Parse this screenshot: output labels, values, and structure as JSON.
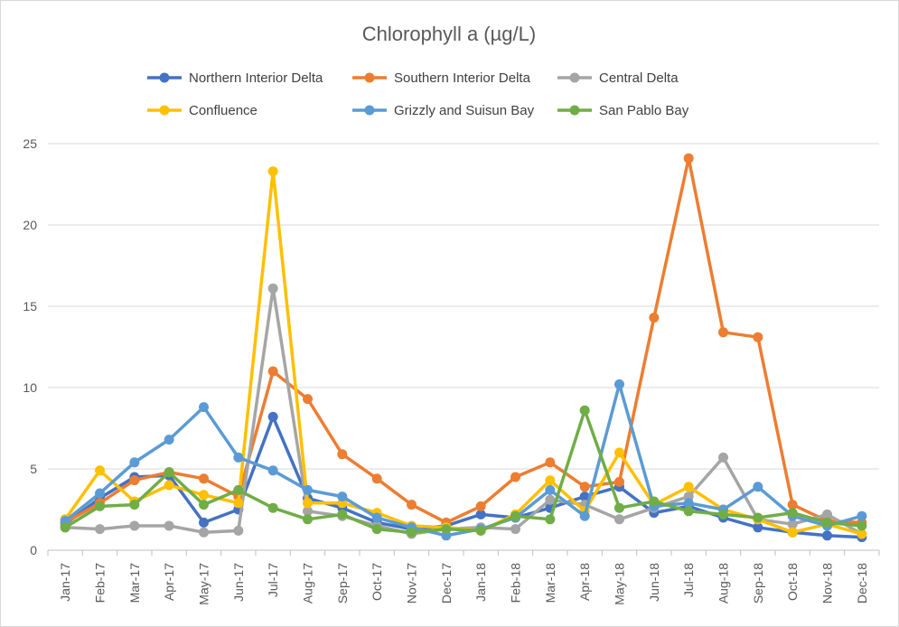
{
  "chart_data": {
    "type": "line",
    "title": "Chlorophyll a (µg/L)",
    "xlabel": "",
    "ylabel": "",
    "ylim": [
      0,
      25
    ],
    "yticks": [
      0,
      5,
      10,
      15,
      20,
      25
    ],
    "grid": true,
    "legend_position": "top",
    "categories": [
      "Jan-17",
      "Feb-17",
      "Mar-17",
      "Apr-17",
      "May-17",
      "Jun-17",
      "Jul-17",
      "Aug-17",
      "Sep-17",
      "Oct-17",
      "Nov-17",
      "Dec-17",
      "Jan-18",
      "Feb-18",
      "Mar-18",
      "Apr-18",
      "May-18",
      "Jun-18",
      "Jul-18",
      "Aug-18",
      "Sep-18",
      "Oct-18",
      "Nov-18",
      "Dec-18"
    ],
    "series": [
      {
        "name": "Northern Interior Delta",
        "color": "#4472C4",
        "values": [
          1.6,
          3.2,
          4.5,
          4.6,
          1.7,
          2.5,
          8.2,
          3.2,
          2.6,
          1.7,
          1.3,
          1.5,
          2.2,
          2.0,
          2.6,
          3.3,
          3.9,
          2.3,
          2.7,
          2.0,
          1.4,
          1.1,
          0.9,
          0.8
        ]
      },
      {
        "name": "Southern Interior Delta",
        "color": "#ED7D31",
        "values": [
          1.7,
          2.9,
          4.3,
          4.8,
          4.4,
          3.3,
          11.0,
          9.3,
          5.9,
          4.4,
          2.8,
          1.7,
          2.7,
          4.5,
          5.4,
          3.9,
          4.2,
          14.3,
          24.1,
          13.4,
          13.1,
          2.8,
          1.8,
          1.7
        ]
      },
      {
        "name": "Central Delta",
        "color": "#A5A5A5",
        "values": [
          1.4,
          1.3,
          1.5,
          1.5,
          1.1,
          1.2,
          16.1,
          2.4,
          2.1,
          1.5,
          1.0,
          1.3,
          1.4,
          1.3,
          3.1,
          2.8,
          1.9,
          2.6,
          3.3,
          5.7,
          1.9,
          1.6,
          2.2,
          1.0
        ]
      },
      {
        "name": "Confluence",
        "color": "#FFC000",
        "values": [
          1.9,
          4.9,
          3.0,
          4.0,
          3.4,
          2.9,
          23.3,
          2.9,
          2.9,
          2.3,
          1.5,
          1.4,
          1.2,
          2.2,
          4.3,
          2.4,
          6.0,
          2.8,
          3.9,
          2.5,
          1.9,
          1.1,
          1.6,
          1.0
        ]
      },
      {
        "name": "Grizzly and Suisun Bay",
        "color": "#5B9BD5",
        "values": [
          1.8,
          3.5,
          5.4,
          6.8,
          8.8,
          5.7,
          4.9,
          3.7,
          3.3,
          2.0,
          1.4,
          0.9,
          1.3,
          2.0,
          3.7,
          2.1,
          10.2,
          2.7,
          2.9,
          2.5,
          3.9,
          2.1,
          1.5,
          2.1
        ]
      },
      {
        "name": "San Pablo Bay",
        "color": "#70AD47",
        "values": [
          1.4,
          2.7,
          2.8,
          4.8,
          2.8,
          3.7,
          2.6,
          1.9,
          2.2,
          1.3,
          1.1,
          1.3,
          1.2,
          2.1,
          1.9,
          8.6,
          2.6,
          3.0,
          2.4,
          2.2,
          2.0,
          2.3,
          1.7,
          1.5
        ]
      }
    ]
  }
}
